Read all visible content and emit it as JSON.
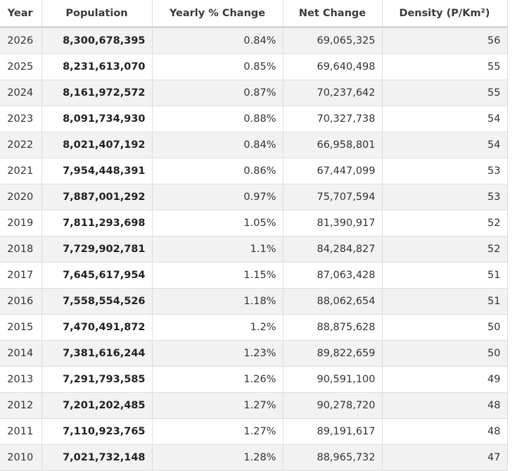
{
  "table": {
    "headers": [
      "Year",
      "Population",
      "Yearly % Change",
      "Net Change",
      "Density (P/Km²)"
    ],
    "rows": [
      {
        "year": "2026",
        "population": "8,300,678,395",
        "yearly_change": "0.84%",
        "net_change": "69,065,325",
        "density": "56"
      },
      {
        "year": "2025",
        "population": "8,231,613,070",
        "yearly_change": "0.85%",
        "net_change": "69,640,498",
        "density": "55"
      },
      {
        "year": "2024",
        "population": "8,161,972,572",
        "yearly_change": "0.87%",
        "net_change": "70,237,642",
        "density": "55"
      },
      {
        "year": "2023",
        "population": "8,091,734,930",
        "yearly_change": "0.88%",
        "net_change": "70,327,738",
        "density": "54"
      },
      {
        "year": "2022",
        "population": "8,021,407,192",
        "yearly_change": "0.84%",
        "net_change": "66,958,801",
        "density": "54"
      },
      {
        "year": "2021",
        "population": "7,954,448,391",
        "yearly_change": "0.86%",
        "net_change": "67,447,099",
        "density": "53"
      },
      {
        "year": "2020",
        "population": "7,887,001,292",
        "yearly_change": "0.97%",
        "net_change": "75,707,594",
        "density": "53"
      },
      {
        "year": "2019",
        "population": "7,811,293,698",
        "yearly_change": "1.05%",
        "net_change": "81,390,917",
        "density": "52"
      },
      {
        "year": "2018",
        "population": "7,729,902,781",
        "yearly_change": "1.1%",
        "net_change": "84,284,827",
        "density": "52"
      },
      {
        "year": "2017",
        "population": "7,645,617,954",
        "yearly_change": "1.15%",
        "net_change": "87,063,428",
        "density": "51"
      },
      {
        "year": "2016",
        "population": "7,558,554,526",
        "yearly_change": "1.18%",
        "net_change": "88,062,654",
        "density": "51"
      },
      {
        "year": "2015",
        "population": "7,470,491,872",
        "yearly_change": "1.2%",
        "net_change": "88,875,628",
        "density": "50"
      },
      {
        "year": "2014",
        "population": "7,381,616,244",
        "yearly_change": "1.23%",
        "net_change": "89,822,659",
        "density": "50"
      },
      {
        "year": "2013",
        "population": "7,291,793,585",
        "yearly_change": "1.26%",
        "net_change": "90,591,100",
        "density": "49"
      },
      {
        "year": "2012",
        "population": "7,201,202,485",
        "yearly_change": "1.27%",
        "net_change": "90,278,720",
        "density": "48"
      },
      {
        "year": "2011",
        "population": "7,110,923,765",
        "yearly_change": "1.27%",
        "net_change": "89,191,617",
        "density": "48"
      },
      {
        "year": "2010",
        "population": "7,021,732,148",
        "yearly_change": "1.28%",
        "net_change": "88,965,732",
        "density": "47"
      }
    ]
  }
}
